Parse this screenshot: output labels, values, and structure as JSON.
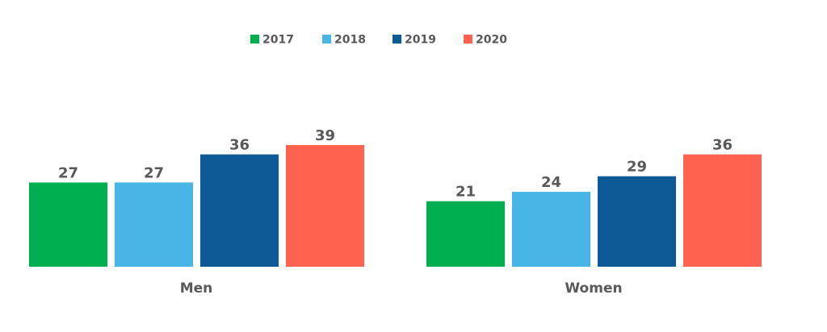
{
  "chart_data": {
    "type": "bar",
    "categories": [
      "Men",
      "Women"
    ],
    "series": [
      {
        "name": "2017",
        "color": "#00b050",
        "values": [
          27,
          21
        ]
      },
      {
        "name": "2018",
        "color": "#47b5e6",
        "values": [
          27,
          24
        ]
      },
      {
        "name": "2019",
        "color": "#0e5a96",
        "values": [
          36,
          29
        ]
      },
      {
        "name": "2020",
        "color": "#ff6350",
        "values": [
          39,
          36
        ]
      }
    ],
    "title": "",
    "xlabel": "",
    "ylabel": "",
    "ylim": [
      0,
      39
    ],
    "legend_position": "top",
    "grid": false
  }
}
